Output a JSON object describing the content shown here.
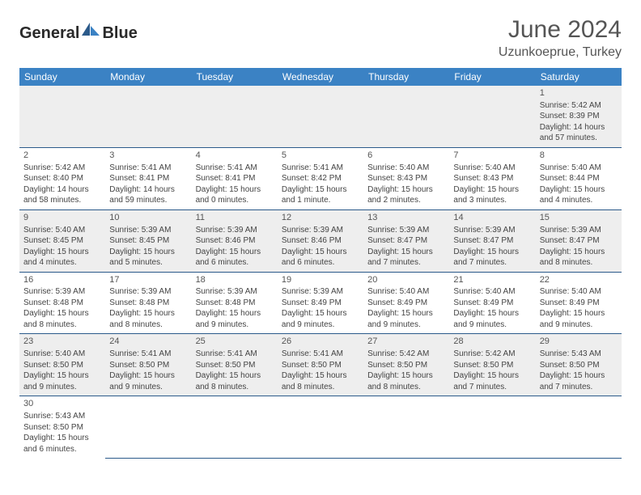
{
  "brand": {
    "part1": "General",
    "part2": "Blue"
  },
  "title": "June 2024",
  "location": "Uzunkoeprue, Turkey",
  "colors": {
    "header_bg": "#3b82c4",
    "header_text": "#ffffff",
    "row_divider": "#2b5a8a",
    "alt_row_bg": "#eeeeee",
    "text": "#444444",
    "title_color": "#555555"
  },
  "daysOfWeek": [
    "Sunday",
    "Monday",
    "Tuesday",
    "Wednesday",
    "Thursday",
    "Friday",
    "Saturday"
  ],
  "weeks": [
    [
      null,
      null,
      null,
      null,
      null,
      null,
      {
        "n": "1",
        "sr": "5:42 AM",
        "ss": "8:39 PM",
        "dl": "14 hours and 57 minutes."
      }
    ],
    [
      {
        "n": "2",
        "sr": "5:42 AM",
        "ss": "8:40 PM",
        "dl": "14 hours and 58 minutes."
      },
      {
        "n": "3",
        "sr": "5:41 AM",
        "ss": "8:41 PM",
        "dl": "14 hours and 59 minutes."
      },
      {
        "n": "4",
        "sr": "5:41 AM",
        "ss": "8:41 PM",
        "dl": "15 hours and 0 minutes."
      },
      {
        "n": "5",
        "sr": "5:41 AM",
        "ss": "8:42 PM",
        "dl": "15 hours and 1 minute."
      },
      {
        "n": "6",
        "sr": "5:40 AM",
        "ss": "8:43 PM",
        "dl": "15 hours and 2 minutes."
      },
      {
        "n": "7",
        "sr": "5:40 AM",
        "ss": "8:43 PM",
        "dl": "15 hours and 3 minutes."
      },
      {
        "n": "8",
        "sr": "5:40 AM",
        "ss": "8:44 PM",
        "dl": "15 hours and 4 minutes."
      }
    ],
    [
      {
        "n": "9",
        "sr": "5:40 AM",
        "ss": "8:45 PM",
        "dl": "15 hours and 4 minutes."
      },
      {
        "n": "10",
        "sr": "5:39 AM",
        "ss": "8:45 PM",
        "dl": "15 hours and 5 minutes."
      },
      {
        "n": "11",
        "sr": "5:39 AM",
        "ss": "8:46 PM",
        "dl": "15 hours and 6 minutes."
      },
      {
        "n": "12",
        "sr": "5:39 AM",
        "ss": "8:46 PM",
        "dl": "15 hours and 6 minutes."
      },
      {
        "n": "13",
        "sr": "5:39 AM",
        "ss": "8:47 PM",
        "dl": "15 hours and 7 minutes."
      },
      {
        "n": "14",
        "sr": "5:39 AM",
        "ss": "8:47 PM",
        "dl": "15 hours and 7 minutes."
      },
      {
        "n": "15",
        "sr": "5:39 AM",
        "ss": "8:47 PM",
        "dl": "15 hours and 8 minutes."
      }
    ],
    [
      {
        "n": "16",
        "sr": "5:39 AM",
        "ss": "8:48 PM",
        "dl": "15 hours and 8 minutes."
      },
      {
        "n": "17",
        "sr": "5:39 AM",
        "ss": "8:48 PM",
        "dl": "15 hours and 8 minutes."
      },
      {
        "n": "18",
        "sr": "5:39 AM",
        "ss": "8:48 PM",
        "dl": "15 hours and 9 minutes."
      },
      {
        "n": "19",
        "sr": "5:39 AM",
        "ss": "8:49 PM",
        "dl": "15 hours and 9 minutes."
      },
      {
        "n": "20",
        "sr": "5:40 AM",
        "ss": "8:49 PM",
        "dl": "15 hours and 9 minutes."
      },
      {
        "n": "21",
        "sr": "5:40 AM",
        "ss": "8:49 PM",
        "dl": "15 hours and 9 minutes."
      },
      {
        "n": "22",
        "sr": "5:40 AM",
        "ss": "8:49 PM",
        "dl": "15 hours and 9 minutes."
      }
    ],
    [
      {
        "n": "23",
        "sr": "5:40 AM",
        "ss": "8:50 PM",
        "dl": "15 hours and 9 minutes."
      },
      {
        "n": "24",
        "sr": "5:41 AM",
        "ss": "8:50 PM",
        "dl": "15 hours and 9 minutes."
      },
      {
        "n": "25",
        "sr": "5:41 AM",
        "ss": "8:50 PM",
        "dl": "15 hours and 8 minutes."
      },
      {
        "n": "26",
        "sr": "5:41 AM",
        "ss": "8:50 PM",
        "dl": "15 hours and 8 minutes."
      },
      {
        "n": "27",
        "sr": "5:42 AM",
        "ss": "8:50 PM",
        "dl": "15 hours and 8 minutes."
      },
      {
        "n": "28",
        "sr": "5:42 AM",
        "ss": "8:50 PM",
        "dl": "15 hours and 7 minutes."
      },
      {
        "n": "29",
        "sr": "5:43 AM",
        "ss": "8:50 PM",
        "dl": "15 hours and 7 minutes."
      }
    ],
    [
      {
        "n": "30",
        "sr": "5:43 AM",
        "ss": "8:50 PM",
        "dl": "15 hours and 6 minutes."
      },
      null,
      null,
      null,
      null,
      null,
      null
    ]
  ],
  "labels": {
    "sunrise": "Sunrise:",
    "sunset": "Sunset:",
    "daylight": "Daylight:"
  }
}
